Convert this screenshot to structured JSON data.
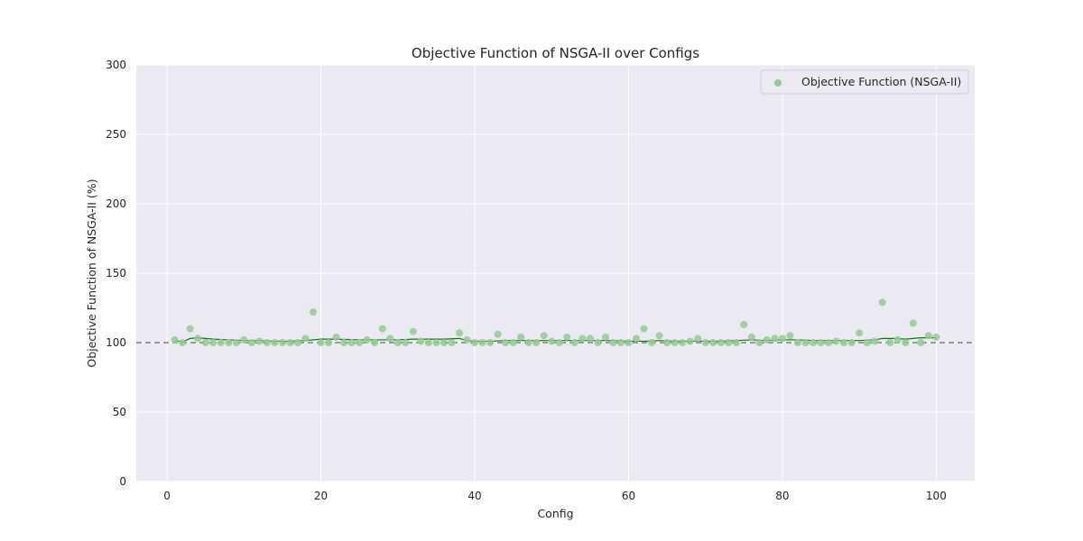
{
  "chart_data": {
    "type": "scatter",
    "title": "Objective Function of NSGA-II over Configs",
    "xlabel": "Config",
    "ylabel": "Objective Function of NSGA-II (%)",
    "xlim": [
      -4,
      105
    ],
    "ylim": [
      0,
      300
    ],
    "xticks": [
      0,
      20,
      40,
      60,
      80,
      100
    ],
    "yticks": [
      0,
      50,
      100,
      150,
      200,
      250,
      300
    ],
    "grid": true,
    "legend_position": "top-right",
    "reference_line": {
      "y": 100,
      "style": "dashed",
      "color": "#808080"
    },
    "colors": {
      "background": "#eaeaf2",
      "points": "#95c995",
      "trend": "#008000"
    },
    "series": [
      {
        "name": "Objective Function (NSGA-II)",
        "x": [
          1,
          2,
          3,
          4,
          5,
          6,
          7,
          8,
          9,
          10,
          11,
          12,
          13,
          14,
          15,
          16,
          17,
          18,
          19,
          20,
          21,
          22,
          23,
          24,
          25,
          26,
          27,
          28,
          29,
          30,
          31,
          32,
          33,
          34,
          35,
          36,
          37,
          38,
          39,
          40,
          41,
          42,
          43,
          44,
          45,
          46,
          47,
          48,
          49,
          50,
          51,
          52,
          53,
          54,
          55,
          56,
          57,
          58,
          59,
          60,
          61,
          62,
          63,
          64,
          65,
          66,
          67,
          68,
          69,
          70,
          71,
          72,
          73,
          74,
          75,
          76,
          77,
          78,
          79,
          80,
          81,
          82,
          83,
          84,
          85,
          86,
          87,
          88,
          89,
          90,
          91,
          92,
          93,
          94,
          95,
          96,
          97,
          98,
          99,
          100
        ],
        "y": [
          102,
          100,
          110,
          103,
          100,
          100,
          100,
          100,
          100,
          102,
          100,
          101,
          100,
          100,
          100,
          100,
          100,
          103,
          122,
          100,
          100,
          104,
          100,
          100,
          100,
          102,
          100,
          110,
          103,
          100,
          100,
          108,
          101,
          100,
          100,
          100,
          100,
          107,
          102,
          100,
          100,
          100,
          106,
          100,
          100,
          104,
          100,
          100,
          105,
          101,
          100,
          104,
          100,
          103,
          103,
          100,
          104,
          100,
          100,
          100,
          103,
          110,
          100,
          105,
          100,
          100,
          100,
          101,
          103,
          100,
          100,
          100,
          100,
          100,
          113,
          104,
          100,
          102,
          103,
          103,
          105,
          100,
          100,
          100,
          100,
          100,
          101,
          100,
          100,
          107,
          100,
          101,
          129,
          100,
          102,
          100,
          114,
          100,
          105,
          104
        ]
      }
    ],
    "trend": {
      "x": [
        1,
        2,
        3,
        4,
        5,
        6,
        8,
        10,
        12,
        14,
        16,
        18,
        20,
        22,
        25,
        28,
        30,
        32,
        34,
        36,
        38,
        39,
        40,
        42,
        44,
        46,
        48,
        50,
        52,
        54,
        56,
        58,
        60,
        62,
        64,
        66,
        68,
        70,
        72,
        74,
        76,
        78,
        80,
        82,
        84,
        86,
        88,
        90,
        92,
        93,
        94,
        95,
        96,
        97,
        98,
        100
      ],
      "y": [
        101.5,
        100.5,
        103,
        103.5,
        103,
        102.5,
        102,
        101.5,
        101.5,
        101,
        101,
        101.5,
        102.5,
        102.5,
        102,
        102,
        102,
        102.5,
        102.5,
        102.5,
        103,
        101.5,
        101,
        101,
        101.5,
        101.5,
        101.5,
        101.5,
        101.5,
        101.5,
        101.5,
        101.5,
        101,
        101,
        101.5,
        101,
        101,
        101,
        101,
        101.5,
        102,
        101.5,
        102,
        102,
        101.5,
        101.5,
        101.5,
        101.5,
        102,
        103,
        103,
        103,
        102.5,
        103,
        103.5,
        103.5
      ]
    }
  }
}
